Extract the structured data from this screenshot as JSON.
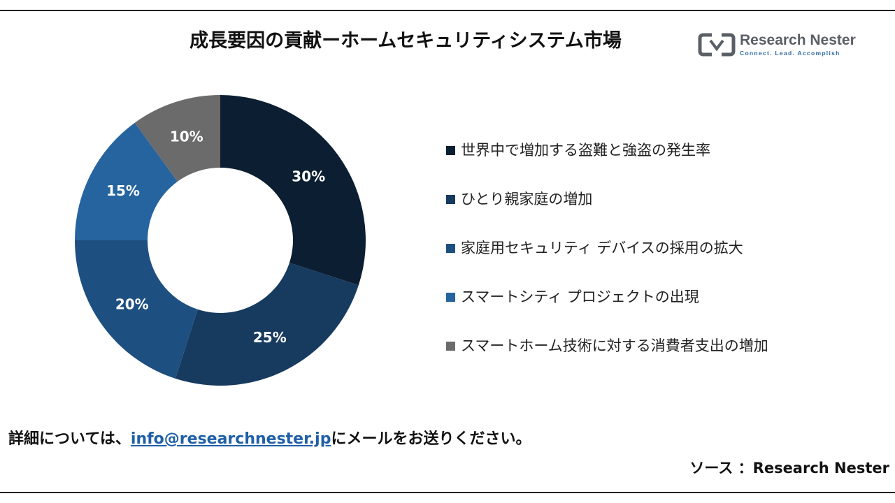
{
  "header": {
    "title": "成長要因の貢献ーホームセキュリティシステム市場"
  },
  "logo": {
    "name": "Research Nester",
    "tagline": "Connect. Lead. Accomplish",
    "icon": "research-nester-logo-icon"
  },
  "chart_data": {
    "type": "pie",
    "style": "donut",
    "title": "成長要因の貢献ーホームセキュリティシステム市場",
    "legend_position": "right",
    "categories": [
      "世界中で増加する盗難と強盗の発生率",
      "ひとり親家庭の増加",
      "家庭用セキュリティ デバイスの採用の拡大",
      "スマートシティ プロジェクトの出現",
      "スマートホーム技術に対する消費者支出の増加"
    ],
    "values": [
      30,
      25,
      20,
      15,
      10
    ],
    "labels": [
      "30%",
      "25%",
      "20%",
      "15%",
      "10%"
    ],
    "colors": [
      "#0c1e31",
      "#173a5f",
      "#1d4f81",
      "#25649f",
      "#6b6b6b"
    ]
  },
  "footer": {
    "contact_prefix": "詳細については、",
    "contact_email": "info@researchnester.jp",
    "contact_suffix": "にメールをお送りください。",
    "source": "ソース ：Research Nester"
  }
}
